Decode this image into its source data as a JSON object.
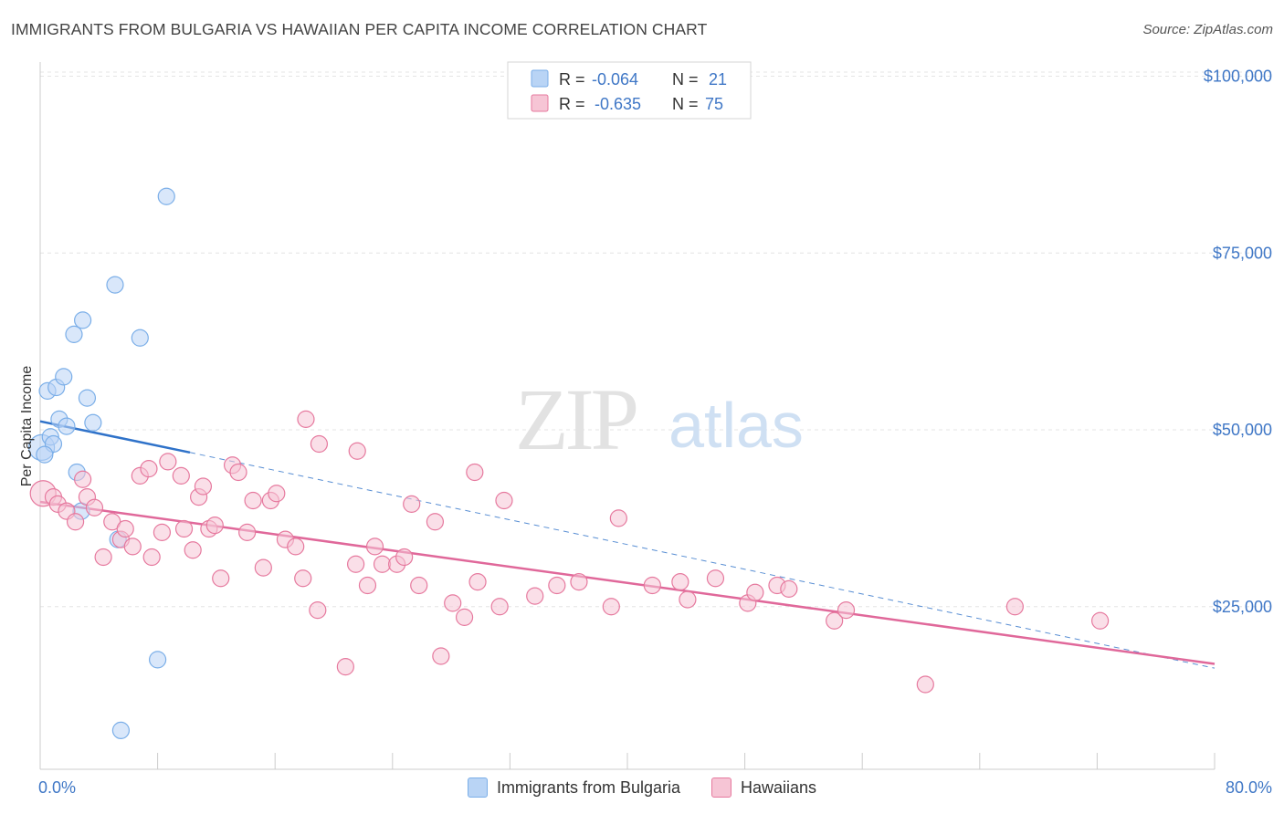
{
  "title": "IMMIGRANTS FROM BULGARIA VS HAWAIIAN PER CAPITA INCOME CORRELATION CHART",
  "source": "Source: ZipAtlas.com",
  "watermark": {
    "zip": "ZIP",
    "atlas": "atlas"
  },
  "colors": {
    "blue": "#7aaee8",
    "blue_fill": "#b9d4f5",
    "blue_line": "#2f72c9",
    "pink": "#e6799e",
    "pink_fill": "#f6c5d5",
    "pink_line": "#e0689a",
    "axis_text": "#3f77c6"
  },
  "legend_box": {
    "rows": [
      {
        "r_label": "R =",
        "r_value": "-0.064",
        "n_label": "N =",
        "n_value": "21"
      },
      {
        "r_label": "R =",
        "r_value": "-0.635",
        "n_label": "N =",
        "n_value": "75"
      }
    ]
  },
  "chart_data": {
    "type": "scatter",
    "title": "IMMIGRANTS FROM BULGARIA VS HAWAIIAN PER CAPITA INCOME CORRELATION CHART",
    "xlabel": "",
    "ylabel": "Per Capita Income",
    "xlim": [
      0,
      80
    ],
    "ylim": [
      2000,
      102000
    ],
    "x_tick_labels": [
      "0.0%",
      "80.0%"
    ],
    "y_ticks": [
      {
        "value": 25000,
        "label": "$25,000"
      },
      {
        "value": 50000,
        "label": "$50,000"
      },
      {
        "value": 75000,
        "label": "$75,000"
      },
      {
        "value": 100000,
        "label": "$100,000"
      }
    ],
    "legend_position": "bottom",
    "series": [
      {
        "name": "Immigrants from Bulgaria",
        "color": "#7aaee8",
        "trend": {
          "x": [
            0,
            10.2
          ],
          "y": [
            51200,
            46800
          ],
          "dashed_extension_to_x": 80,
          "dashed_end_y": 16300
        },
        "points": [
          [
            0.1,
            47500,
            14
          ],
          [
            0.5,
            55500,
            9
          ],
          [
            0.7,
            49000,
            9
          ],
          [
            0.9,
            48000,
            9
          ],
          [
            1.1,
            56000,
            9
          ],
          [
            1.3,
            51500,
            9
          ],
          [
            1.6,
            57500,
            9
          ],
          [
            1.8,
            50500,
            9
          ],
          [
            2.3,
            63500,
            9
          ],
          [
            2.5,
            44000,
            9
          ],
          [
            2.8,
            38500,
            9
          ],
          [
            2.9,
            65500,
            9
          ],
          [
            3.2,
            54500,
            9
          ],
          [
            3.6,
            51000,
            9
          ],
          [
            5.1,
            70500,
            9
          ],
          [
            5.3,
            34500,
            9
          ],
          [
            5.5,
            7500,
            9
          ],
          [
            6.8,
            63000,
            9
          ],
          [
            8.0,
            17500,
            9
          ],
          [
            8.6,
            83000,
            9
          ],
          [
            0.3,
            46500,
            9
          ]
        ]
      },
      {
        "name": "Hawaiians",
        "color": "#e6799e",
        "trend": {
          "x": [
            0,
            80
          ],
          "y": [
            39800,
            16900
          ]
        },
        "points": [
          [
            0.2,
            41000,
            14
          ],
          [
            0.9,
            40500,
            9
          ],
          [
            1.2,
            39500,
            9
          ],
          [
            1.8,
            38500,
            9
          ],
          [
            2.4,
            37000,
            9
          ],
          [
            2.9,
            43000,
            9
          ],
          [
            3.2,
            40500,
            9
          ],
          [
            3.7,
            39000,
            9
          ],
          [
            4.3,
            32000,
            9
          ],
          [
            4.9,
            37000,
            9
          ],
          [
            5.5,
            34500,
            9
          ],
          [
            5.8,
            36000,
            9
          ],
          [
            6.3,
            33500,
            9
          ],
          [
            6.8,
            43500,
            9
          ],
          [
            7.4,
            44500,
            9
          ],
          [
            7.6,
            32000,
            9
          ],
          [
            8.3,
            35500,
            9
          ],
          [
            8.7,
            45500,
            9
          ],
          [
            9.6,
            43500,
            9
          ],
          [
            9.8,
            36000,
            9
          ],
          [
            10.4,
            33000,
            9
          ],
          [
            10.8,
            40500,
            9
          ],
          [
            11.1,
            42000,
            9
          ],
          [
            11.5,
            36000,
            9
          ],
          [
            11.9,
            36500,
            9
          ],
          [
            12.3,
            29000,
            9
          ],
          [
            13.1,
            45000,
            9
          ],
          [
            13.5,
            44000,
            9
          ],
          [
            14.1,
            35500,
            9
          ],
          [
            14.5,
            40000,
            9
          ],
          [
            15.2,
            30500,
            9
          ],
          [
            15.7,
            40000,
            9
          ],
          [
            16.1,
            41000,
            9
          ],
          [
            16.7,
            34500,
            9
          ],
          [
            17.4,
            33500,
            9
          ],
          [
            17.9,
            29000,
            9
          ],
          [
            18.1,
            51500,
            9
          ],
          [
            18.9,
            24500,
            9
          ],
          [
            19.0,
            48000,
            9
          ],
          [
            20.8,
            16500,
            9
          ],
          [
            21.6,
            47000,
            9
          ],
          [
            21.5,
            31000,
            9
          ],
          [
            22.3,
            28000,
            9
          ],
          [
            22.8,
            33500,
            9
          ],
          [
            23.3,
            31000,
            9
          ],
          [
            24.3,
            31000,
            9
          ],
          [
            24.8,
            32000,
            9
          ],
          [
            25.3,
            39500,
            9
          ],
          [
            25.8,
            28000,
            9
          ],
          [
            26.9,
            37000,
            9
          ],
          [
            27.3,
            18000,
            9
          ],
          [
            28.1,
            25500,
            9
          ],
          [
            28.9,
            23500,
            9
          ],
          [
            29.6,
            44000,
            9
          ],
          [
            29.8,
            28500,
            9
          ],
          [
            31.3,
            25000,
            9
          ],
          [
            31.6,
            40000,
            9
          ],
          [
            33.7,
            26500,
            9
          ],
          [
            35.2,
            28000,
            9
          ],
          [
            36.7,
            28500,
            9
          ],
          [
            38.9,
            25000,
            9
          ],
          [
            39.4,
            37500,
            9
          ],
          [
            41.7,
            28000,
            9
          ],
          [
            43.6,
            28500,
            9
          ],
          [
            44.1,
            26000,
            9
          ],
          [
            46.0,
            29000,
            9
          ],
          [
            48.2,
            25500,
            9
          ],
          [
            48.7,
            27000,
            9
          ],
          [
            50.2,
            28000,
            9
          ],
          [
            51.0,
            27500,
            9
          ],
          [
            54.1,
            23000,
            9
          ],
          [
            54.9,
            24500,
            9
          ],
          [
            60.3,
            14000,
            9
          ],
          [
            66.4,
            25000,
            9
          ],
          [
            72.2,
            23000,
            9
          ]
        ]
      }
    ]
  },
  "bottom_legend": [
    {
      "label": "Immigrants from Bulgaria"
    },
    {
      "label": "Hawaiians"
    }
  ]
}
